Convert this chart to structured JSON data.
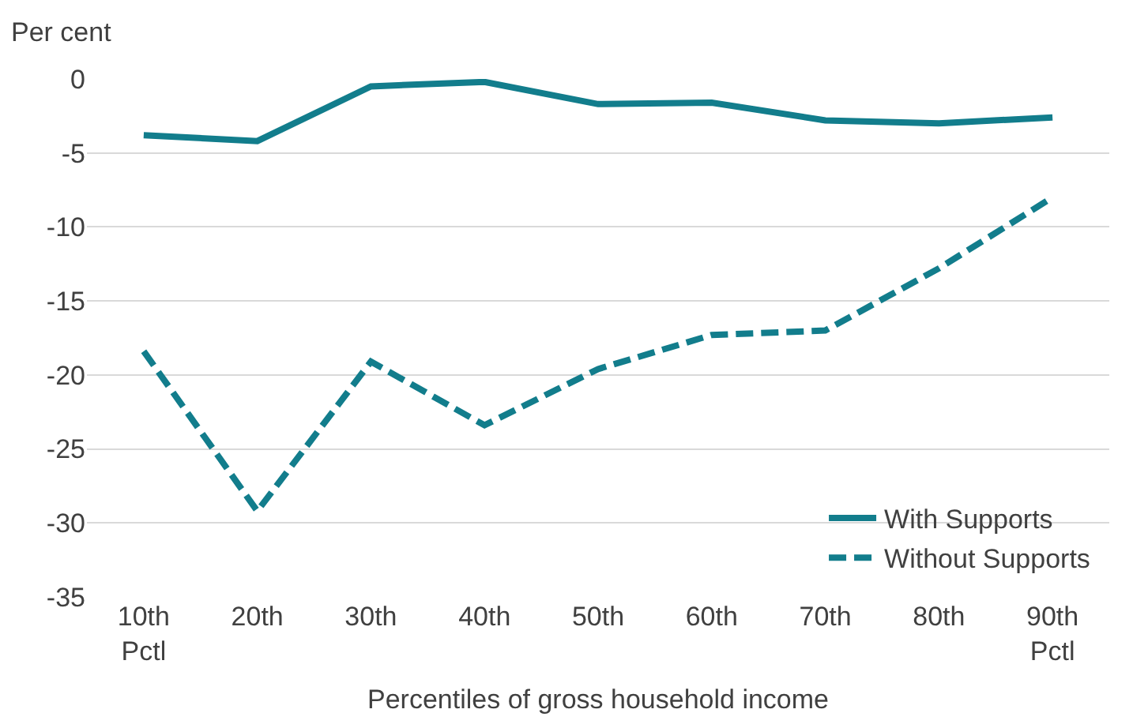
{
  "chart_data": {
    "type": "line",
    "ylabel": "Per cent",
    "xlabel": "Percentiles of gross household income",
    "categories": [
      "10th\nPctl",
      "20th",
      "30th",
      "40th",
      "50th",
      "60th",
      "70th",
      "80th",
      "90th\nPctl"
    ],
    "series": [
      {
        "name": "With Supports",
        "color": "#127d8c",
        "line_style": "solid",
        "values": [
          -3.8,
          -4.2,
          -0.5,
          -0.2,
          -1.7,
          -1.6,
          -2.8,
          -3.0,
          -2.6
        ]
      },
      {
        "name": "Without Supports",
        "color": "#127d8c",
        "line_style": "dashed",
        "values": [
          -18.4,
          -29.2,
          -19.1,
          -23.4,
          -19.6,
          -17.3,
          -17.0,
          -12.8,
          -8.0
        ]
      }
    ],
    "ylim": [
      -35,
      0
    ],
    "yticks": [
      -35,
      -30,
      -25,
      -20,
      -15,
      -10,
      -5,
      0
    ],
    "grid": "y",
    "legend": "bottom right",
    "marker": "none"
  }
}
